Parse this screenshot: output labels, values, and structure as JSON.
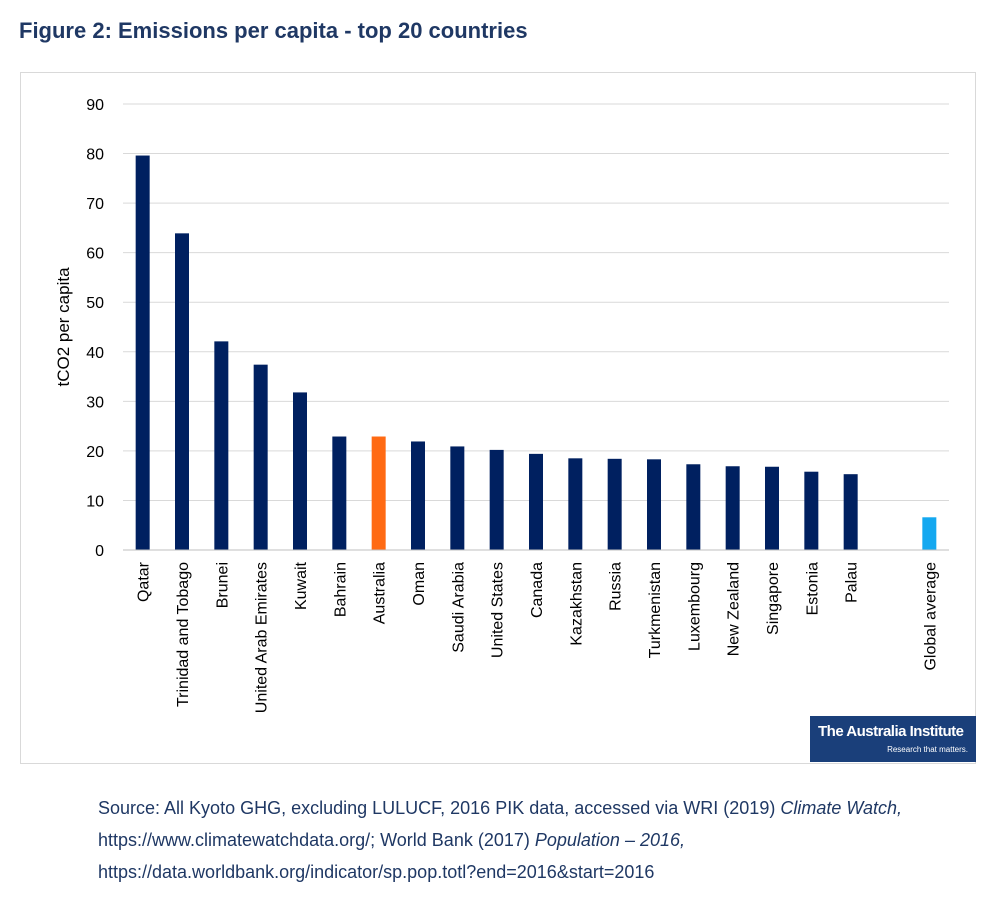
{
  "figure_title": "Figure 2: Emissions per capita - top 20 countries",
  "logo": {
    "name": "The Australia Institute",
    "tagline": "Research that matters."
  },
  "source": {
    "part1": "Source: All Kyoto GHG, excluding LULUCF, 2016 PIK data, accessed via WRI (2019) ",
    "italic1": "Climate Watch,",
    "part2": " https://www.climatewatchdata.org/; World Bank (2017) ",
    "italic2": "Population – 2016,",
    "part3": " https://data.worldbank.org/indicator/sp.pop.totl?end=2016&start=2016"
  },
  "colors": {
    "bar_default": "#002060",
    "bar_highlight": "#ff6a13",
    "bar_average": "#14a8f0",
    "title": "#1f3864"
  },
  "chart_data": {
    "type": "bar",
    "title": "Figure 2: Emissions per capita - top 20 countries",
    "xlabel": "",
    "ylabel": "tCO2 per capita",
    "ylim": [
      0,
      90
    ],
    "yticks": [
      0,
      10,
      20,
      30,
      40,
      50,
      60,
      70,
      80,
      90
    ],
    "grid": true,
    "categories": [
      "Qatar",
      "Trinidad and Tobago",
      "Brunei",
      "United Arab Emirates",
      "Kuwait",
      "Bahrain",
      "Australia",
      "Oman",
      "Saudi Arabia",
      "United States",
      "Canada",
      "Kazakhstan",
      "Russia",
      "Turkmenistan",
      "Luxembourg",
      "New Zealand",
      "Singapore",
      "Estonia",
      "Palau",
      "",
      "Global average"
    ],
    "values": [
      79.6,
      63.9,
      42.1,
      37.4,
      31.8,
      22.9,
      22.9,
      21.9,
      20.9,
      20.2,
      19.4,
      18.5,
      18.4,
      18.3,
      17.3,
      16.9,
      16.8,
      15.8,
      15.3,
      null,
      6.6
    ],
    "highlight": [
      "Australia"
    ],
    "average": [
      "Global average"
    ]
  }
}
